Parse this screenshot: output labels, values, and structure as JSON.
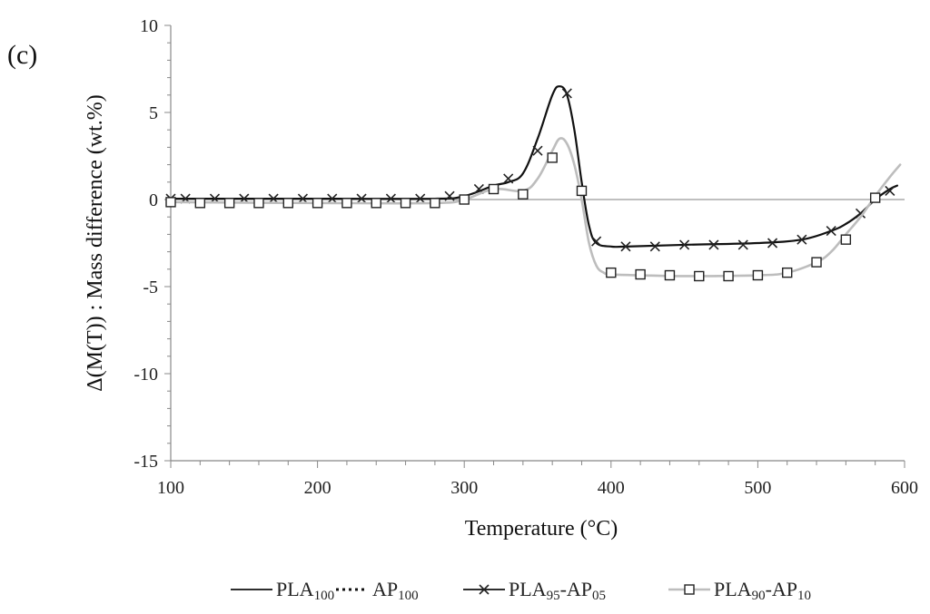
{
  "panel_label": "(c)",
  "colors": {
    "axis": "#888888",
    "zero_line": "#aaaaaa",
    "pla100": "#111111",
    "ap100": "#111111",
    "pla95_ap05": "#111111",
    "pla90_ap10": "#bdbdbd",
    "marker": "#222222"
  },
  "chart_data": {
    "type": "line",
    "title": "",
    "xlabel": "Temperature (°C)",
    "ylabel": "Δ(M(T)) : Mass difference (wt.%)",
    "xlim": [
      100,
      600
    ],
    "ylim": [
      -15,
      10
    ],
    "x_ticks": [
      "100",
      "200",
      "300",
      "400",
      "500",
      "600"
    ],
    "y_ticks": [
      "-15",
      "-10",
      "-5",
      "0",
      "5",
      "10"
    ],
    "grid": false,
    "legend_position": "bottom",
    "series": [
      {
        "name": "PLA100",
        "name_main": "PLA",
        "name_sub": "100",
        "style": "solid-thin",
        "x": [
          100,
          600
        ],
        "y": [
          0,
          0
        ]
      },
      {
        "name": "AP100",
        "name_main": "AP",
        "name_sub": "100",
        "style": "dotted",
        "x": [
          100,
          600
        ],
        "y": [
          0,
          0
        ]
      },
      {
        "name": "PLA95-AP05",
        "name_main": "PLA",
        "name_sub": "95",
        "name_mid": "-AP",
        "name_sub2": "05",
        "style": "solid-cross",
        "x": [
          100,
          200,
          280,
          300,
          320,
          330,
          340,
          350,
          360,
          365,
          370,
          375,
          380,
          385,
          390,
          400,
          410,
          450,
          500,
          530,
          550,
          560,
          570,
          580,
          590,
          595
        ],
        "y": [
          0.05,
          0.05,
          0.05,
          0.2,
          0.8,
          1.0,
          1.5,
          3.5,
          6.0,
          6.5,
          6.0,
          4.0,
          1.0,
          -1.5,
          -2.5,
          -2.7,
          -2.7,
          -2.6,
          -2.5,
          -2.3,
          -1.8,
          -1.4,
          -0.8,
          0.0,
          0.6,
          0.8
        ],
        "markers_x": [
          100,
          110,
          130,
          150,
          170,
          190,
          210,
          230,
          250,
          270,
          290,
          310,
          330,
          350,
          370,
          390,
          410,
          430,
          450,
          470,
          490,
          510,
          530,
          550,
          570,
          590
        ],
        "markers_y": [
          0.05,
          0.05,
          0.05,
          0.05,
          0.05,
          0.05,
          0.05,
          0.05,
          0.05,
          0.05,
          0.2,
          0.6,
          1.2,
          2.8,
          6.1,
          -2.4,
          -2.7,
          -2.7,
          -2.6,
          -2.6,
          -2.6,
          -2.5,
          -2.3,
          -1.8,
          -0.8,
          0.5
        ]
      },
      {
        "name": "PLA90-AP10",
        "name_main": "PLA",
        "name_sub": "90",
        "name_mid": "-AP",
        "name_sub2": "10",
        "style": "solid-square",
        "x": [
          100,
          200,
          280,
          300,
          320,
          340,
          350,
          360,
          365,
          370,
          375,
          380,
          385,
          390,
          395,
          400,
          420,
          450,
          500,
          520,
          540,
          550,
          560,
          570,
          580,
          590,
          597
        ],
        "y": [
          -0.15,
          -0.2,
          -0.2,
          0.0,
          0.6,
          0.5,
          1.2,
          2.8,
          3.5,
          3.2,
          2.0,
          0.0,
          -2.5,
          -3.8,
          -4.2,
          -4.3,
          -4.35,
          -4.4,
          -4.35,
          -4.2,
          -3.6,
          -3.0,
          -2.0,
          -1.0,
          0.2,
          1.3,
          2.0
        ],
        "markers_x": [
          100,
          120,
          140,
          160,
          180,
          200,
          220,
          240,
          260,
          280,
          300,
          320,
          340,
          360,
          380,
          400,
          420,
          440,
          460,
          480,
          500,
          520,
          540,
          560,
          580
        ],
        "markers_y": [
          -0.15,
          -0.2,
          -0.2,
          -0.2,
          -0.2,
          -0.2,
          -0.2,
          -0.2,
          -0.2,
          -0.2,
          0.0,
          0.6,
          0.3,
          2.4,
          0.5,
          -4.2,
          -4.3,
          -4.35,
          -4.4,
          -4.4,
          -4.35,
          -4.2,
          -3.6,
          -2.3,
          0.1
        ]
      }
    ]
  }
}
